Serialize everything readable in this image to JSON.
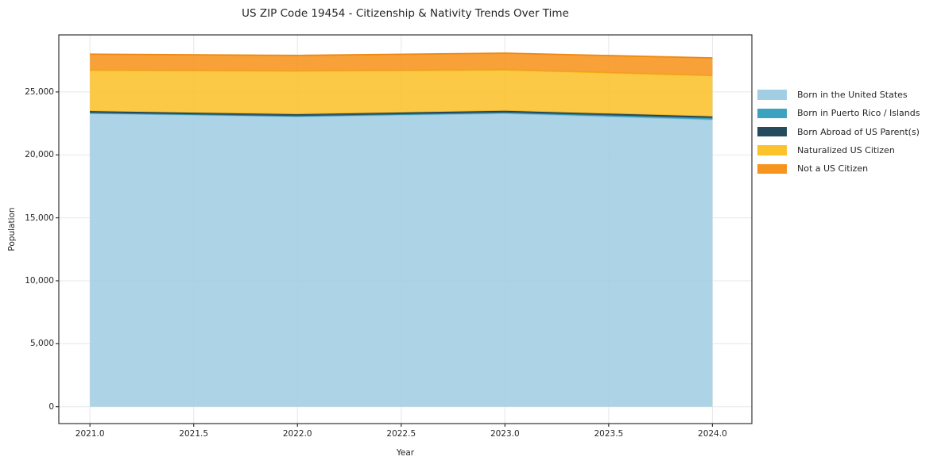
{
  "chart": {
    "title": "US ZIP Code 19454 - Citizenship & Nativity Trends Over Time"
  },
  "chart_data": {
    "type": "area",
    "stacked": true,
    "title": "US ZIP Code 19454 - Citizenship & Nativity Trends Over Time",
    "xlabel": "Year",
    "ylabel": "Population",
    "x": [
      2021,
      2022,
      2023,
      2024
    ],
    "series": [
      {
        "name": "Born in the United States",
        "color": "#a1cee3",
        "edge": "#8fc3da",
        "values": [
          23300,
          23050,
          23300,
          22800
        ]
      },
      {
        "name": "Born in Puerto Rico / Islands",
        "color": "#3ba3c0",
        "edge": "#2f93ae",
        "values": [
          40,
          40,
          60,
          130
        ]
      },
      {
        "name": "Born Abroad of US Parent(s)",
        "color": "#254b5c",
        "edge": "#1d3e4d",
        "values": [
          130,
          140,
          140,
          120
        ]
      },
      {
        "name": "Naturalized US Citizen",
        "color": "#fcc22c",
        "edge": "#f0b416",
        "values": [
          3250,
          3430,
          3250,
          3250
        ]
      },
      {
        "name": "Not a US Citizen",
        "color": "#f7941e",
        "edge": "#ef8810",
        "values": [
          1280,
          1240,
          1330,
          1400
        ]
      }
    ],
    "x_ticks": [
      "2021.0",
      "2021.5",
      "2022.0",
      "2022.5",
      "2023.0",
      "2023.5",
      "2024.0"
    ],
    "x_tick_values": [
      2021,
      2021.5,
      2022,
      2022.5,
      2023,
      2023.5,
      2024
    ],
    "y_ticks": [
      "0",
      "5,000",
      "10,000",
      "15,000",
      "20,000",
      "25,000"
    ],
    "y_tick_values": [
      0,
      5000,
      10000,
      15000,
      20000,
      25000
    ],
    "xlim": [
      2020.85,
      2024.19
    ],
    "ylim": [
      -1342,
      29530
    ],
    "grid": true,
    "legend_position": "right",
    "fill_alpha": 0.88,
    "colors": {
      "grid": "#e7e7e7",
      "spine": "#333333",
      "tick": "#333333",
      "text": "#262626",
      "background": "#ffffff"
    }
  }
}
